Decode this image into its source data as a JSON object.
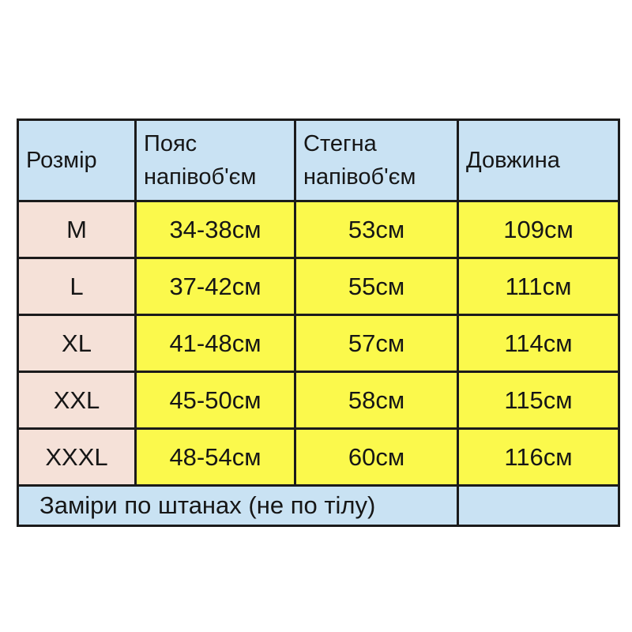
{
  "colors": {
    "header_bg": "#c9e2f3",
    "size_col_bg": "#f5e1d8",
    "value_bg": "#fbf94c",
    "footer_bg": "#c9e2f3",
    "border": "#1b1b1b",
    "text": "#161616"
  },
  "chart_data": {
    "type": "table",
    "columns": [
      "Розмір",
      "Пояс напівоб'єм",
      "Стегна напівоб'єм",
      "Довжина"
    ],
    "rows": [
      [
        "M",
        "34-38см",
        "53см",
        "109см"
      ],
      [
        "L",
        "37-42см",
        "55см",
        "111см"
      ],
      [
        "XL",
        "41-48см",
        "57см",
        "114см"
      ],
      [
        "XXL",
        "45-50см",
        "58см",
        "115см"
      ],
      [
        "XXXL",
        "48-54см",
        "60см",
        "116см"
      ]
    ],
    "footnote": "Заміри по штанах (не по тілу)"
  }
}
